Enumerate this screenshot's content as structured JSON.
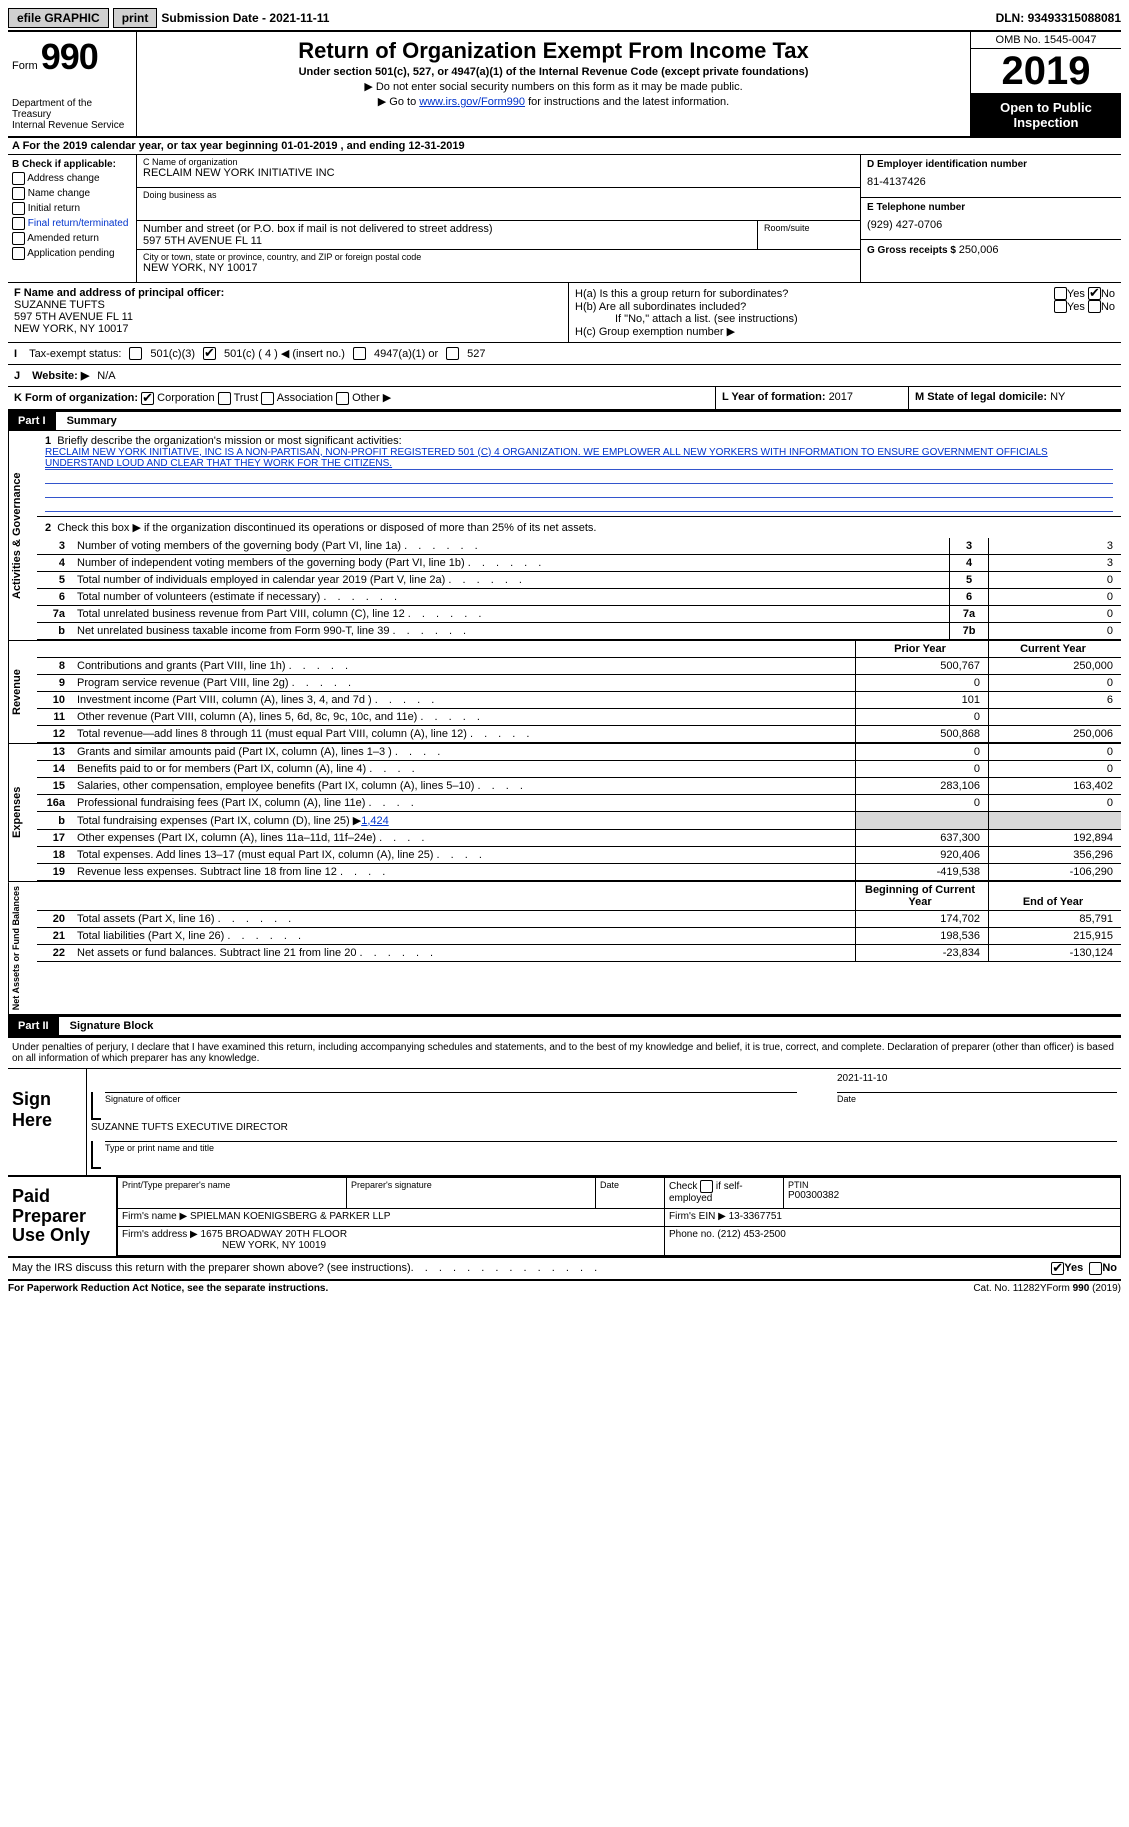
{
  "topbar": {
    "efile": "efile GRAPHIC",
    "print": "print",
    "sub_label": "Submission Date - ",
    "sub_date": "2021-11-11",
    "dln_label": "DLN: ",
    "dln": "93493315088081"
  },
  "header": {
    "form_label": "Form",
    "form_num": "990",
    "dept": "Department of the Treasury",
    "irs": "Internal Revenue Service",
    "title": "Return of Organization Exempt From Income Tax",
    "subtitle": "Under section 501(c), 527, or 4947(a)(1) of the Internal Revenue Code (except private foundations)",
    "note1": "Do not enter social security numbers on this form as it may be made public.",
    "note2_pre": "Go to ",
    "note2_link": "www.irs.gov/Form990",
    "note2_post": " for instructions and the latest information.",
    "omb": "OMB No. 1545-0047",
    "year": "2019",
    "open": "Open to Public Inspection"
  },
  "period": {
    "text_pre": "A For the 2019 calendar year, or tax year beginning ",
    "begin": "01-01-2019",
    "mid": " , and ending ",
    "end": "12-31-2019"
  },
  "boxB": {
    "label": "B Check if applicable:",
    "items": [
      "Address change",
      "Name change",
      "Initial return",
      "Final return/terminated",
      "Amended return",
      "Application pending"
    ]
  },
  "boxC": {
    "name_lbl": "C Name of organization",
    "name": "RECLAIM NEW YORK INITIATIVE INC",
    "dba_lbl": "Doing business as",
    "addr_lbl": "Number and street (or P.O. box if mail is not delivered to street address)",
    "addr": "597 5TH AVENUE FL 11",
    "suite_lbl": "Room/suite",
    "city_lbl": "City or town, state or province, country, and ZIP or foreign postal code",
    "city": "NEW YORK, NY  10017"
  },
  "boxD": {
    "lbl": "D Employer identification number",
    "val": "81-4137426"
  },
  "boxE": {
    "lbl": "E Telephone number",
    "val": "(929) 427-0706"
  },
  "boxG": {
    "lbl": "G Gross receipts $ ",
    "val": "250,006"
  },
  "boxF": {
    "lbl": "F Name and address of principal officer:",
    "name": "SUZANNE TUFTS",
    "addr1": "597 5TH AVENUE FL 11",
    "addr2": "NEW YORK, NY  10017"
  },
  "boxH": {
    "a": "H(a)  Is this a group return for subordinates?",
    "b": "H(b)  Are all subordinates included?",
    "note": "If \"No,\" attach a list. (see instructions)",
    "c": "H(c)  Group exemption number ▶",
    "yes": "Yes",
    "no": "No"
  },
  "boxI": {
    "lbl": "Tax-exempt status:",
    "o1": "501(c)(3)",
    "o2": "501(c) ( 4 ) ◀ (insert no.)",
    "o3": "4947(a)(1) or",
    "o4": "527"
  },
  "boxJ": {
    "lbl": "Website: ▶",
    "val": "N/A"
  },
  "boxK": {
    "lbl": "K Form of organization:",
    "o1": "Corporation",
    "o2": "Trust",
    "o3": "Association",
    "o4": "Other ▶"
  },
  "boxL": {
    "lbl": "L Year of formation: ",
    "val": "2017"
  },
  "boxM": {
    "lbl": "M State of legal domicile: ",
    "val": "NY"
  },
  "part1": {
    "hdr": "Part I",
    "title": "Summary"
  },
  "summary": {
    "line1_lbl": "Briefly describe the organization's mission or most significant activities:",
    "line1_val": "RECLAIM NEW YORK INITIATIVE, INC IS A NON-PARTISAN, NON-PROFIT REGISTERED 501 (C) 4 ORGANIZATION. WE EMPLOWER ALL NEW YORKERS WITH INFORMATION TO ENSURE GOVERNMENT OFFICIALS UNDERSTAND LOUD AND CLEAR THAT THEY WORK FOR THE CITIZENS.",
    "line2": "Check this box ▶      if the organization discontinued its operations or disposed of more than 25% of its net assets.",
    "tabs": {
      "gov": "Activities & Governance",
      "rev": "Revenue",
      "exp": "Expenses",
      "net": "Net Assets or Fund Balances"
    },
    "gov_rows": [
      {
        "n": "3",
        "t": "Number of voting members of the governing body (Part VI, line 1a)",
        "ref": "3",
        "v": "3"
      },
      {
        "n": "4",
        "t": "Number of independent voting members of the governing body (Part VI, line 1b)",
        "ref": "4",
        "v": "3"
      },
      {
        "n": "5",
        "t": "Total number of individuals employed in calendar year 2019 (Part V, line 2a)",
        "ref": "5",
        "v": "0"
      },
      {
        "n": "6",
        "t": "Total number of volunteers (estimate if necessary)",
        "ref": "6",
        "v": "0"
      },
      {
        "n": "7a",
        "t": "Total unrelated business revenue from Part VIII, column (C), line 12",
        "ref": "7a",
        "v": "0"
      },
      {
        "n": "b",
        "t": "Net unrelated business taxable income from Form 990-T, line 39",
        "ref": "7b",
        "v": "0"
      }
    ],
    "col_prior": "Prior Year",
    "col_curr": "Current Year",
    "rev_rows": [
      {
        "n": "8",
        "t": "Contributions and grants (Part VIII, line 1h)",
        "p": "500,767",
        "c": "250,000"
      },
      {
        "n": "9",
        "t": "Program service revenue (Part VIII, line 2g)",
        "p": "0",
        "c": "0"
      },
      {
        "n": "10",
        "t": "Investment income (Part VIII, column (A), lines 3, 4, and 7d )",
        "p": "101",
        "c": "6"
      },
      {
        "n": "11",
        "t": "Other revenue (Part VIII, column (A), lines 5, 6d, 8c, 9c, 10c, and 11e)",
        "p": "0",
        "c": ""
      },
      {
        "n": "12",
        "t": "Total revenue—add lines 8 through 11 (must equal Part VIII, column (A), line 12)",
        "p": "500,868",
        "c": "250,006"
      }
    ],
    "exp_rows": [
      {
        "n": "13",
        "t": "Grants and similar amounts paid (Part IX, column (A), lines 1–3 )",
        "p": "0",
        "c": "0"
      },
      {
        "n": "14",
        "t": "Benefits paid to or for members (Part IX, column (A), line 4)",
        "p": "0",
        "c": "0"
      },
      {
        "n": "15",
        "t": "Salaries, other compensation, employee benefits (Part IX, column (A), lines 5–10)",
        "p": "283,106",
        "c": "163,402"
      },
      {
        "n": "16a",
        "t": "Professional fundraising fees (Part IX, column (A), line 11e)",
        "p": "0",
        "c": "0"
      },
      {
        "n": "b",
        "t": "Total fundraising expenses (Part IX, column (D), line 25) ▶",
        "p": "",
        "c": "",
        "fund": "1,424",
        "shade": true
      },
      {
        "n": "17",
        "t": "Other expenses (Part IX, column (A), lines 11a–11d, 11f–24e)",
        "p": "637,300",
        "c": "192,894"
      },
      {
        "n": "18",
        "t": "Total expenses. Add lines 13–17 (must equal Part IX, column (A), line 25)",
        "p": "920,406",
        "c": "356,296"
      },
      {
        "n": "19",
        "t": "Revenue less expenses. Subtract line 18 from line 12",
        "p": "-419,538",
        "c": "-106,290"
      }
    ],
    "col_begin": "Beginning of Current Year",
    "col_end": "End of Year",
    "net_rows": [
      {
        "n": "20",
        "t": "Total assets (Part X, line 16)",
        "p": "174,702",
        "c": "85,791"
      },
      {
        "n": "21",
        "t": "Total liabilities (Part X, line 26)",
        "p": "198,536",
        "c": "215,915"
      },
      {
        "n": "22",
        "t": "Net assets or fund balances. Subtract line 21 from line 20",
        "p": "-23,834",
        "c": "-130,124"
      }
    ]
  },
  "part2": {
    "hdr": "Part II",
    "title": "Signature Block",
    "penalty": "Under penalties of perjury, I declare that I have examined this return, including accompanying schedules and statements, and to the best of my knowledge and belief, it is true, correct, and complete. Declaration of preparer (other than officer) is based on all information of which preparer has any knowledge."
  },
  "sign": {
    "label": "Sign Here",
    "sig_lbl": "Signature of officer",
    "date_lbl": "Date",
    "date": "2021-11-10",
    "name": "SUZANNE TUFTS  EXECUTIVE DIRECTOR",
    "name_lbl": "Type or print name and title"
  },
  "prep": {
    "label": "Paid Preparer Use Only",
    "h1": "Print/Type preparer's name",
    "h2": "Preparer's signature",
    "h3": "Date",
    "h4_a": "Check",
    "h4_b": "if self-employed",
    "h5_lbl": "PTIN",
    "h5": "P00300382",
    "firm_lbl": "Firm's name    ▶",
    "firm": "SPIELMAN KOENIGSBERG & PARKER LLP",
    "ein_lbl": "Firm's EIN ▶",
    "ein": "13-3367751",
    "addr_lbl": "Firm's address ▶",
    "addr1": "1675 BROADWAY 20TH FLOOR",
    "addr2": "NEW YORK, NY  10019",
    "phone_lbl": "Phone no. ",
    "phone": "(212) 453-2500"
  },
  "discuss": {
    "text": "May the IRS discuss this return with the preparer shown above? (see instructions)",
    "yes": "Yes",
    "no": "No"
  },
  "bottom": {
    "l": "For Paperwork Reduction Act Notice, see the separate instructions.",
    "m": "Cat. No. 11282Y",
    "r": "Form 990 (2019)"
  }
}
